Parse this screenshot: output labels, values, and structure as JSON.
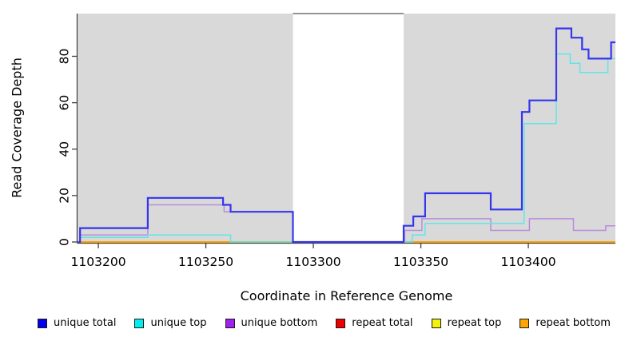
{
  "chart_data": {
    "type": "line",
    "subtype": "step-coverage",
    "title": "",
    "xlabel": "Coordinate in Reference Genome",
    "ylabel": "Read Coverage Depth",
    "xlim": [
      1103190.5,
      1103440.5
    ],
    "ylim": [
      0,
      98.4
    ],
    "x_ticks": [
      {
        "value": 1103200,
        "label": "1103200"
      },
      {
        "value": 1103250,
        "label": "1103250"
      },
      {
        "value": 1103300,
        "label": "1103300"
      },
      {
        "value": 1103350,
        "label": "1103350"
      },
      {
        "value": 1103400,
        "label": "1103400"
      }
    ],
    "y_ticks": [
      {
        "value": 0,
        "label": "0"
      },
      {
        "value": 20,
        "label": "20"
      },
      {
        "value": 40,
        "label": "40"
      },
      {
        "value": 60,
        "label": "60"
      },
      {
        "value": 80,
        "label": "80"
      }
    ],
    "plot_background": "#d9d9d9",
    "masked_region": {
      "x_start": 1103290.5,
      "x_end": 1103342,
      "color": "#ffffff",
      "top_border_color": "#555555"
    },
    "grid": false,
    "legend_position": "bottom",
    "series": [
      {
        "name": "repeat total",
        "color": "#dd2222",
        "line_width": 1.4,
        "steps": [
          [
            1103190.5,
            0
          ]
        ]
      },
      {
        "name": "repeat top",
        "color": "#f0e030",
        "line_width": 1.4,
        "steps": [
          [
            1103190.5,
            0
          ]
        ]
      },
      {
        "name": "repeat bottom",
        "color": "#ffa500",
        "line_width": 2,
        "steps": [
          [
            1103190.5,
            0
          ]
        ]
      },
      {
        "name": "unique bottom",
        "color": "#b98cdc",
        "line_width": 1.5,
        "steps": [
          [
            1103190.5,
            0
          ],
          [
            1103191.5,
            3
          ],
          [
            1103223,
            16
          ],
          [
            1103258.5,
            13
          ],
          [
            1103290.5,
            0
          ],
          [
            1103342.5,
            5
          ],
          [
            1103350.5,
            10
          ],
          [
            1103382.5,
            5
          ],
          [
            1103400.5,
            10
          ],
          [
            1103421,
            5
          ],
          [
            1103436,
            7
          ]
        ]
      },
      {
        "name": "unique top",
        "color": "#5fe6e6",
        "line_width": 1.5,
        "steps": [
          [
            1103190.5,
            0
          ],
          [
            1103191.5,
            2
          ],
          [
            1103223,
            3
          ],
          [
            1103261.5,
            0
          ],
          [
            1103346,
            3
          ],
          [
            1103352,
            8
          ],
          [
            1103398,
            51
          ],
          [
            1103413,
            81
          ],
          [
            1103419.5,
            77
          ],
          [
            1103424,
            73
          ],
          [
            1103437,
            79
          ]
        ]
      },
      {
        "name": "unique total",
        "color": "#3535ee",
        "line_width": 2.2,
        "steps": [
          [
            1103190.5,
            0
          ],
          [
            1103191.5,
            6
          ],
          [
            1103223,
            19
          ],
          [
            1103258,
            16
          ],
          [
            1103261.5,
            13
          ],
          [
            1103290.5,
            0
          ],
          [
            1103342,
            7
          ],
          [
            1103346.5,
            11
          ],
          [
            1103352,
            21
          ],
          [
            1103382.5,
            14
          ],
          [
            1103397,
            56
          ],
          [
            1103400.5,
            61
          ],
          [
            1103413,
            92
          ],
          [
            1103420,
            88
          ],
          [
            1103425,
            83
          ],
          [
            1103428,
            79
          ],
          [
            1103438.5,
            86
          ]
        ]
      }
    ]
  },
  "legend": {
    "items": [
      {
        "label": "unique total",
        "color": "#0000ee"
      },
      {
        "label": "unique top",
        "color": "#00eeee"
      },
      {
        "label": "unique bottom",
        "color": "#a020f0"
      },
      {
        "label": "repeat total",
        "color": "#ee0000"
      },
      {
        "label": "repeat top",
        "color": "#f2f20c"
      },
      {
        "label": "repeat bottom",
        "color": "#ffa500"
      }
    ]
  }
}
